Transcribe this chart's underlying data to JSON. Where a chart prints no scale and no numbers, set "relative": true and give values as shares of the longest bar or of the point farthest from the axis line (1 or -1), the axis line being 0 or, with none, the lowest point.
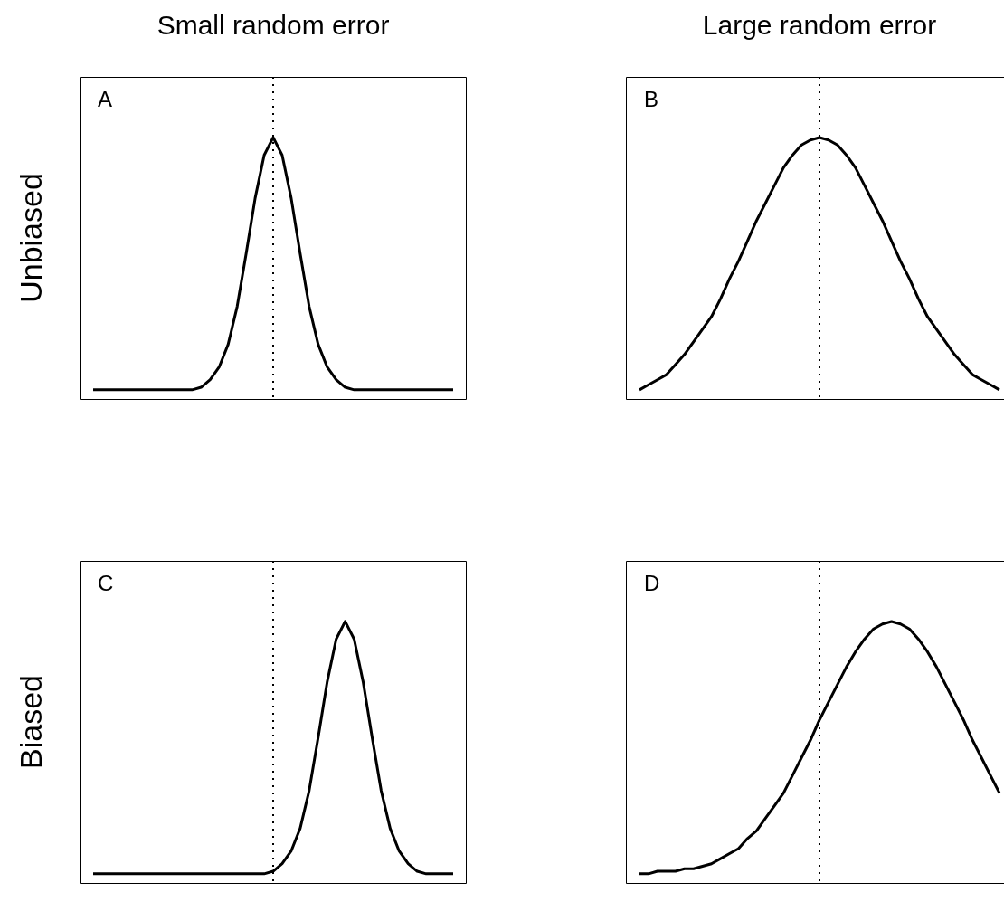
{
  "chart_data": [
    {
      "type": "line",
      "title": "Small random error",
      "ylabel": "Unbiased",
      "annotations": [
        "A"
      ],
      "relative": true,
      "tick_labels": false,
      "categories": [
        null,
        null,
        null,
        null,
        null,
        null,
        null,
        null,
        null,
        null,
        null,
        null,
        null,
        null,
        null,
        null,
        null,
        null,
        null,
        null,
        null,
        null,
        null,
        null,
        null,
        null,
        null,
        null,
        null,
        null,
        null,
        null,
        null,
        null,
        null,
        null,
        null,
        null,
        null,
        null,
        null
      ],
      "series": [
        {
          "color": "#000000",
          "values": [
            0,
            0,
            0,
            0,
            0,
            0,
            0,
            0,
            0,
            0,
            0,
            0,
            0.01,
            0.04,
            0.09,
            0.18,
            0.33,
            0.54,
            0.76,
            0.93,
            1,
            0.93,
            0.76,
            0.54,
            0.33,
            0.18,
            0.09,
            0.04,
            0.01,
            0,
            0,
            0,
            0,
            0,
            0,
            0,
            0,
            0,
            0,
            0,
            0
          ]
        }
      ]
    },
    {
      "type": "line",
      "title": "Large random error",
      "annotations": [
        "B"
      ],
      "relative": true,
      "tick_labels": false,
      "categories": [
        null,
        null,
        null,
        null,
        null,
        null,
        null,
        null,
        null,
        null,
        null,
        null,
        null,
        null,
        null,
        null,
        null,
        null,
        null,
        null,
        null,
        null,
        null,
        null,
        null,
        null,
        null,
        null,
        null,
        null,
        null,
        null,
        null,
        null,
        null,
        null,
        null,
        null,
        null,
        null,
        null
      ],
      "series": [
        {
          "color": "#000000",
          "values": [
            0,
            0.02,
            0.04,
            0.06,
            0.1,
            0.14,
            0.19,
            0.24,
            0.29,
            0.36,
            0.44,
            0.51,
            0.59,
            0.67,
            0.74,
            0.81,
            0.88,
            0.93,
            0.97,
            0.99,
            1,
            0.99,
            0.97,
            0.93,
            0.88,
            0.81,
            0.74,
            0.67,
            0.59,
            0.51,
            0.44,
            0.36,
            0.29,
            0.24,
            0.19,
            0.14,
            0.1,
            0.06,
            0.04,
            0.02,
            0
          ]
        }
      ]
    },
    {
      "type": "line",
      "ylabel": "Biased",
      "annotations": [
        "C"
      ],
      "relative": true,
      "tick_labels": false,
      "categories": [
        null,
        null,
        null,
        null,
        null,
        null,
        null,
        null,
        null,
        null,
        null,
        null,
        null,
        null,
        null,
        null,
        null,
        null,
        null,
        null,
        null,
        null,
        null,
        null,
        null,
        null,
        null,
        null,
        null,
        null,
        null,
        null,
        null,
        null,
        null,
        null,
        null,
        null,
        null,
        null,
        null
      ],
      "series": [
        {
          "color": "#000000",
          "values": [
            0,
            0,
            0,
            0,
            0,
            0,
            0,
            0,
            0,
            0,
            0,
            0,
            0,
            0,
            0,
            0,
            0,
            0,
            0,
            0,
            0.01,
            0.04,
            0.09,
            0.18,
            0.33,
            0.54,
            0.76,
            0.93,
            1,
            0.93,
            0.76,
            0.54,
            0.33,
            0.18,
            0.09,
            0.04,
            0.01,
            0,
            0,
            0,
            0
          ]
        }
      ]
    },
    {
      "type": "line",
      "annotations": [
        "D"
      ],
      "relative": true,
      "tick_labels": false,
      "categories": [
        null,
        null,
        null,
        null,
        null,
        null,
        null,
        null,
        null,
        null,
        null,
        null,
        null,
        null,
        null,
        null,
        null,
        null,
        null,
        null,
        null,
        null,
        null,
        null,
        null,
        null,
        null,
        null,
        null,
        null,
        null,
        null,
        null,
        null,
        null,
        null,
        null,
        null,
        null,
        null,
        null
      ],
      "series": [
        {
          "color": "#000000",
          "values": [
            0,
            0,
            0.01,
            0.01,
            0.01,
            0.02,
            0.02,
            0.03,
            0.04,
            0.06,
            0.08,
            0.1,
            0.14,
            0.17,
            0.22,
            0.27,
            0.32,
            0.39,
            0.46,
            0.53,
            0.61,
            0.68,
            0.75,
            0.82,
            0.88,
            0.93,
            0.97,
            0.99,
            1,
            0.99,
            0.97,
            0.93,
            0.88,
            0.82,
            0.75,
            0.68,
            0.61,
            0.53,
            0.46,
            0.39,
            0.32
          ]
        }
      ]
    }
  ]
}
